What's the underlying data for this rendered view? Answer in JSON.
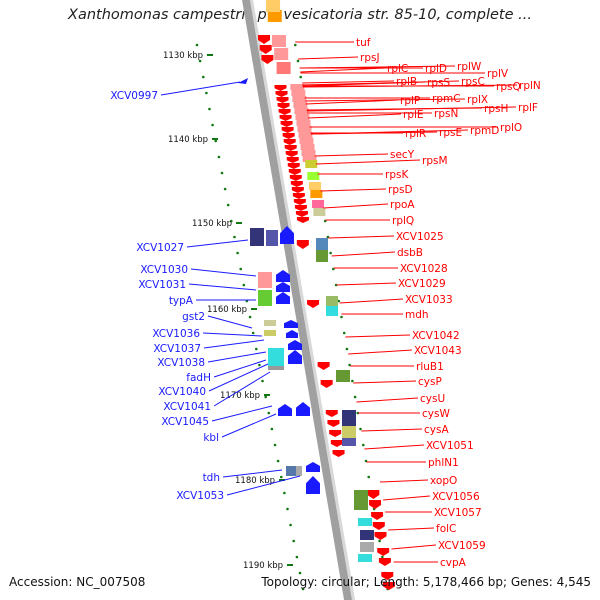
{
  "title": "Xanthomonas campestris pv. vesicatoria str. 85-10, complete ...",
  "footer": {
    "accession": "Accession: NC_007508",
    "meta": "Topology: circular; Length: 5,178,466 bp; Genes: 4,545"
  },
  "colors": {
    "forward": "#1a1aff",
    "reverse": "#ff0000",
    "backbone": "#a0a0a0",
    "tick": "#117711"
  },
  "ticks": [
    "1130 kbp",
    "1140 kbp",
    "1150 kbp",
    "1160 kbp",
    "1170 kbp",
    "1180 kbp",
    "1190 kbp"
  ],
  "left_labels": [
    "XCV0997",
    "XCV1027",
    "XCV1030",
    "XCV1031",
    "typA",
    "gst2",
    "XCV1036",
    "XCV1037",
    "XCV1038",
    "fadH",
    "XCV1040",
    "XCV1041",
    "XCV1045",
    "kbl",
    "tdh",
    "XCV1053"
  ],
  "right_labels": [
    "tuf",
    "rpsJ",
    "rplC",
    "rplD",
    "rplW",
    "rpsS",
    "rplV",
    "rplB",
    "rpsC",
    "rpsQ",
    "rplN",
    "rplP",
    "rpmC",
    "rplX",
    "rplE",
    "rpsN",
    "rpsH",
    "rplF",
    "rplR",
    "rpsE",
    "rpmD",
    "rplO",
    "secY",
    "rpsM",
    "rpsK",
    "rpsD",
    "rpoA",
    "rplQ",
    "XCV1025",
    "dsbB",
    "XCV1028",
    "XCV1029",
    "XCV1033",
    "mdh",
    "XCV1042",
    "XCV1043",
    "rluB1",
    "cysP",
    "cysU",
    "cysW",
    "cysA",
    "XCV1051",
    "phlN1",
    "xopO",
    "XCV1056",
    "XCV1057",
    "folC",
    "XCV1059",
    "cvpA"
  ]
}
